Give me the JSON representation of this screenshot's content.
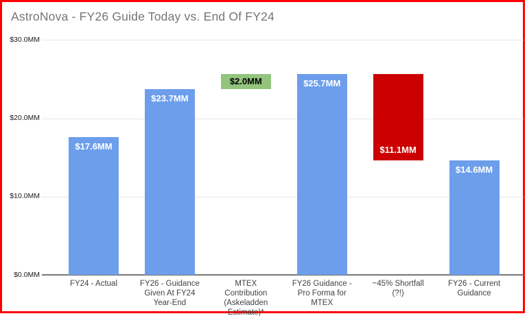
{
  "title": "AstroNova - FY26 Guide Today vs. End Of FY24",
  "colors": {
    "blue": "#6d9eeb",
    "red": "#cc0000",
    "green": "#93c47d",
    "frame_border": "#ff0000",
    "title_text": "#757575",
    "gridline": "#e6e6e6",
    "axis_line": "#757575",
    "label_on_blue": "#ffffff",
    "label_on_red": "#ffffff",
    "label_on_green": "#000000"
  },
  "chart_data": {
    "type": "bar",
    "title": "AstroNova - FY26 Guide Today vs. End Of FY24",
    "xlabel": "",
    "ylabel": "",
    "ylim": [
      0,
      30
    ],
    "grid": true,
    "legend": "none",
    "y_ticks": [
      {
        "label": "$30.0MM",
        "value": 30
      },
      {
        "label": "$20.0MM",
        "value": 20
      },
      {
        "label": "$10.0MM",
        "value": 10
      },
      {
        "label": "$0.0MM",
        "value": 0
      }
    ],
    "categories": [
      "FY24 - Actual",
      "FY26 - Guidance Given At FY24 Year-End",
      "MTEX Contribution (Askeladden Estimate)*",
      "FY26 Guidance - Pro Forma for MTEX",
      "~45% Shortfall (?!)",
      "FY26 - Current Guidance"
    ],
    "bars": [
      {
        "category_lines": [
          "FY24 - Actual"
        ],
        "value": 17.6,
        "base": 0,
        "label": "$17.6MM",
        "color": "blue",
        "label_pos": "top"
      },
      {
        "category_lines": [
          "FY26 - Guidance",
          "Given At FY24",
          "Year-End"
        ],
        "value": 23.7,
        "base": 0,
        "label": "$23.7MM",
        "color": "blue",
        "label_pos": "top"
      },
      {
        "category_lines": [
          "MTEX",
          "Contribution",
          "(Askeladden",
          "Estimate)*"
        ],
        "value": 25.7,
        "base": 23.7,
        "label": "$2.0MM",
        "color": "green",
        "label_pos": "center"
      },
      {
        "category_lines": [
          "FY26 Guidance -",
          "Pro Forma for",
          "MTEX"
        ],
        "value": 25.7,
        "base": 0,
        "label": "$25.7MM",
        "color": "blue",
        "label_pos": "top"
      },
      {
        "category_lines": [
          "~45% Shortfall",
          "(?!)"
        ],
        "value": 25.7,
        "base": 14.6,
        "label": "$11.1MM",
        "color": "red",
        "label_pos": "bottom"
      },
      {
        "category_lines": [
          "FY26 - Current",
          "Guidance"
        ],
        "value": 14.6,
        "base": 0,
        "label": "$14.6MM",
        "color": "blue",
        "label_pos": "top"
      }
    ]
  }
}
